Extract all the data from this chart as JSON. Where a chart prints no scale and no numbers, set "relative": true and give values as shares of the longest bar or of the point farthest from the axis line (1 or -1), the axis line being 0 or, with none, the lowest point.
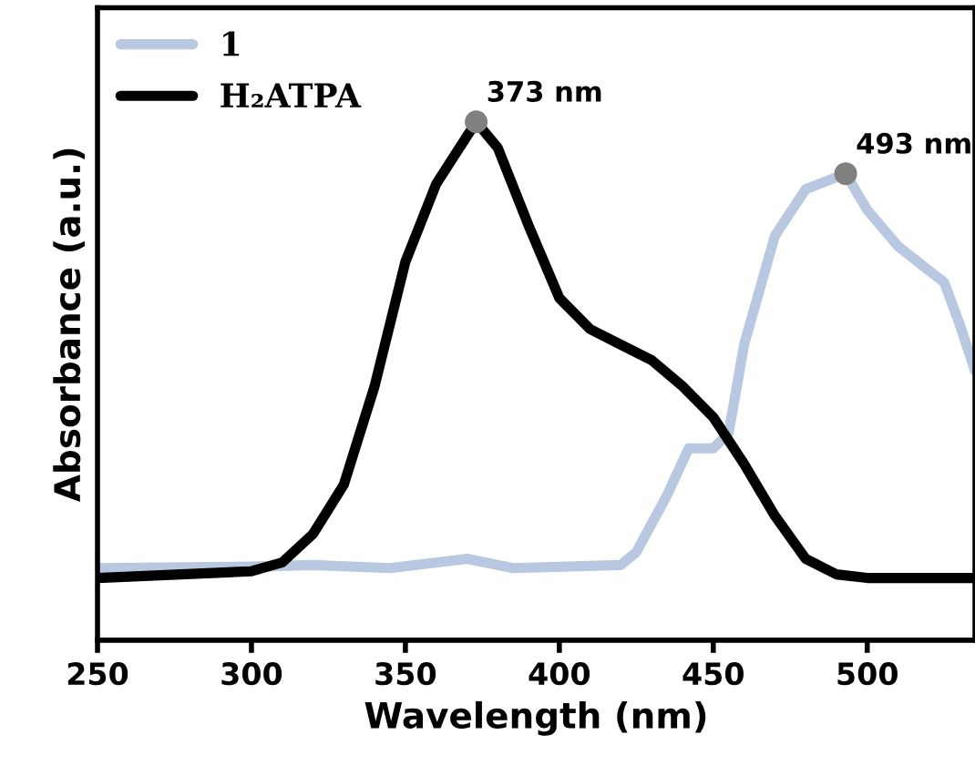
{
  "chart_data": {
    "type": "line",
    "xlabel": "Wavelength (nm)",
    "ylabel": "Absorbance (a.u.)",
    "relative": true,
    "xlim": [
      250,
      535
    ],
    "xticks": [
      250,
      300,
      350,
      400,
      450,
      500
    ],
    "legend": "top left",
    "grid": false,
    "series": [
      {
        "name": "1",
        "color": "#b8c8e0",
        "x": [
          250,
          300,
          320,
          345,
          370,
          385,
          420,
          425,
          435,
          442,
          450,
          455,
          460,
          470,
          480,
          493,
          500,
          510,
          525,
          530,
          535
        ],
        "values": [
          0.139,
          0.142,
          0.145,
          0.139,
          0.157,
          0.139,
          0.145,
          0.17,
          0.28,
          0.37,
          0.37,
          0.4,
          0.57,
          0.78,
          0.87,
          0.9,
          0.83,
          0.76,
          0.69,
          0.61,
          0.52
        ]
      },
      {
        "name": "H₂ATPA",
        "color": "#000000",
        "x": [
          250,
          300,
          310,
          320,
          330,
          340,
          350,
          360,
          373,
          380,
          390,
          400,
          410,
          420,
          430,
          440,
          450,
          460,
          470,
          480,
          490,
          500,
          535
        ],
        "values": [
          0.12,
          0.133,
          0.15,
          0.205,
          0.3,
          0.49,
          0.73,
          0.88,
          1.0,
          0.95,
          0.8,
          0.66,
          0.6,
          0.57,
          0.54,
          0.49,
          0.43,
          0.34,
          0.24,
          0.157,
          0.127,
          0.12,
          0.12
        ]
      }
    ],
    "annotations": [
      {
        "text": "373 nm",
        "x": 373,
        "y": 1.0
      },
      {
        "text": "493 nm",
        "x": 493,
        "y": 0.9
      }
    ]
  }
}
